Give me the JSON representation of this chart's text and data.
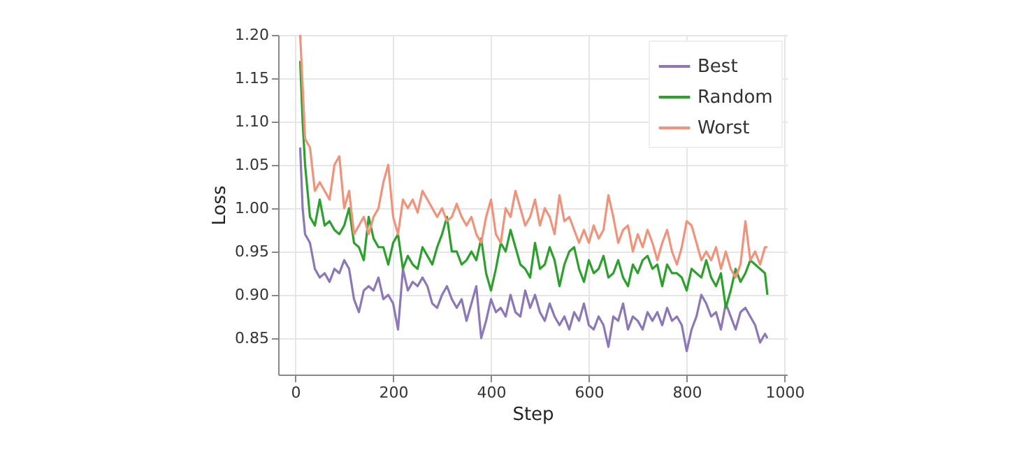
{
  "chart_data": {
    "type": "line",
    "xlabel": "Step",
    "ylabel": "Loss",
    "x": [
      10,
      15,
      20,
      30,
      40,
      50,
      60,
      70,
      80,
      90,
      100,
      110,
      120,
      130,
      140,
      150,
      160,
      170,
      180,
      190,
      200,
      210,
      220,
      230,
      240,
      250,
      260,
      270,
      280,
      290,
      300,
      310,
      320,
      330,
      340,
      350,
      360,
      370,
      380,
      390,
      400,
      410,
      420,
      430,
      440,
      450,
      460,
      470,
      480,
      490,
      500,
      510,
      520,
      530,
      540,
      550,
      560,
      570,
      580,
      590,
      600,
      610,
      620,
      630,
      640,
      650,
      660,
      670,
      680,
      690,
      700,
      710,
      720,
      730,
      740,
      750,
      760,
      770,
      780,
      790,
      800,
      810,
      820,
      830,
      840,
      850,
      860,
      870,
      880,
      890,
      900,
      910,
      920,
      930,
      940,
      950,
      960,
      965
    ],
    "series": [
      {
        "name": "Best",
        "color": "#8c77b8",
        "values": [
          1.07,
          1.0,
          0.97,
          0.96,
          0.93,
          0.92,
          0.925,
          0.915,
          0.93,
          0.925,
          0.94,
          0.93,
          0.895,
          0.88,
          0.905,
          0.91,
          0.905,
          0.92,
          0.895,
          0.9,
          0.89,
          0.86,
          0.93,
          0.905,
          0.915,
          0.91,
          0.92,
          0.91,
          0.89,
          0.885,
          0.9,
          0.91,
          0.895,
          0.885,
          0.895,
          0.87,
          0.89,
          0.91,
          0.85,
          0.87,
          0.895,
          0.88,
          0.885,
          0.875,
          0.9,
          0.88,
          0.875,
          0.905,
          0.885,
          0.9,
          0.88,
          0.87,
          0.89,
          0.875,
          0.865,
          0.875,
          0.86,
          0.88,
          0.87,
          0.89,
          0.865,
          0.86,
          0.875,
          0.865,
          0.84,
          0.875,
          0.87,
          0.89,
          0.86,
          0.875,
          0.87,
          0.86,
          0.88,
          0.87,
          0.88,
          0.865,
          0.885,
          0.87,
          0.875,
          0.865,
          0.835,
          0.86,
          0.875,
          0.9,
          0.89,
          0.875,
          0.88,
          0.86,
          0.89,
          0.875,
          0.86,
          0.88,
          0.885,
          0.875,
          0.865,
          0.845,
          0.855,
          0.85
        ]
      },
      {
        "name": "Random",
        "color": "#2ca02c",
        "values": [
          1.17,
          1.1,
          1.05,
          0.99,
          0.98,
          1.01,
          0.98,
          0.985,
          0.975,
          0.97,
          0.98,
          1.0,
          0.96,
          0.955,
          0.94,
          0.99,
          0.965,
          0.955,
          0.955,
          0.935,
          0.96,
          0.97,
          0.93,
          0.945,
          0.935,
          0.93,
          0.955,
          0.945,
          0.935,
          0.955,
          0.97,
          0.99,
          0.95,
          0.95,
          0.935,
          0.94,
          0.95,
          0.94,
          0.965,
          0.925,
          0.905,
          0.93,
          0.96,
          0.95,
          0.975,
          0.955,
          0.935,
          0.93,
          0.92,
          0.96,
          0.93,
          0.935,
          0.955,
          0.94,
          0.91,
          0.935,
          0.95,
          0.955,
          0.93,
          0.915,
          0.94,
          0.925,
          0.93,
          0.945,
          0.92,
          0.925,
          0.94,
          0.92,
          0.91,
          0.935,
          0.925,
          0.94,
          0.945,
          0.93,
          0.935,
          0.91,
          0.935,
          0.925,
          0.925,
          0.92,
          0.905,
          0.93,
          0.925,
          0.92,
          0.94,
          0.92,
          0.91,
          0.925,
          0.885,
          0.905,
          0.93,
          0.915,
          0.925,
          0.94,
          0.935,
          0.93,
          0.925,
          0.9
        ]
      },
      {
        "name": "Worst",
        "color": "#f0937a",
        "values": [
          1.2,
          1.14,
          1.08,
          1.07,
          1.02,
          1.03,
          1.02,
          1.01,
          1.05,
          1.06,
          1.0,
          1.02,
          0.97,
          0.98,
          0.99,
          0.97,
          0.99,
          1.0,
          1.03,
          1.05,
          0.99,
          0.97,
          1.01,
          1.0,
          1.01,
          0.995,
          1.02,
          1.01,
          1.0,
          0.99,
          1.0,
          0.985,
          0.99,
          1.005,
          0.99,
          0.98,
          0.99,
          0.97,
          0.96,
          0.99,
          1.01,
          0.97,
          0.96,
          1.0,
          0.99,
          1.02,
          1.0,
          0.98,
          0.99,
          1.01,
          0.98,
          1.0,
          0.99,
          0.97,
          1.015,
          0.985,
          0.99,
          0.975,
          0.96,
          0.975,
          0.96,
          0.98,
          0.965,
          0.975,
          1.015,
          0.99,
          0.96,
          0.975,
          0.98,
          0.95,
          0.97,
          0.955,
          0.975,
          0.96,
          0.94,
          0.96,
          0.975,
          0.95,
          0.935,
          0.955,
          0.985,
          0.98,
          0.96,
          0.94,
          0.95,
          0.94,
          0.955,
          0.93,
          0.95,
          0.93,
          0.92,
          0.935,
          0.985,
          0.94,
          0.95,
          0.935,
          0.955,
          0.955
        ]
      }
    ],
    "xlim": [
      -35,
      1005
    ],
    "ylim": [
      0.808,
      1.2
    ],
    "xticks": [
      0,
      200,
      400,
      600,
      800,
      1000
    ],
    "yticks": [
      {
        "value": 0.85,
        "label": "0.85"
      },
      {
        "value": 0.9,
        "label": "0.90"
      },
      {
        "value": 0.95,
        "label": "0.95"
      },
      {
        "value": 1.0,
        "label": "1.00"
      },
      {
        "value": 1.05,
        "label": "1.05"
      },
      {
        "value": 1.1,
        "label": "1.10"
      },
      {
        "value": 1.15,
        "label": "1.15"
      },
      {
        "value": 1.2,
        "label": "1.20"
      }
    ],
    "grid": true,
    "legend": "top right",
    "marker": "none",
    "line_style": "solid"
  }
}
